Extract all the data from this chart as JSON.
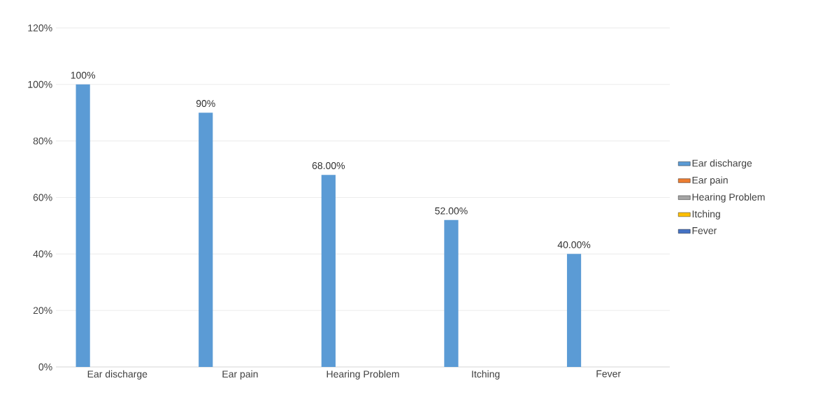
{
  "chart_data": {
    "type": "bar",
    "categories": [
      "Ear discharge",
      "Ear pain",
      "Hearing Problem",
      "Itching",
      "Fever"
    ],
    "series": [
      {
        "name": "Ear discharge",
        "color": "#5b9bd5",
        "values": [
          100,
          90,
          68,
          52,
          40
        ],
        "value_labels": [
          "100%",
          "90%",
          "68.00%",
          "52.00%",
          "40.00%"
        ]
      },
      {
        "name": "Ear pain",
        "color": "#ed7d31",
        "values": [
          null,
          null,
          null,
          null,
          null
        ]
      },
      {
        "name": "Hearing Problem",
        "color": "#a5a5a5",
        "values": [
          null,
          null,
          null,
          null,
          null
        ]
      },
      {
        "name": "Itching",
        "color": "#ffc000",
        "values": [
          null,
          null,
          null,
          null,
          null
        ]
      },
      {
        "name": "Fever",
        "color": "#4472c4",
        "values": [
          null,
          null,
          null,
          null,
          null
        ]
      }
    ],
    "ylim": [
      0,
      120
    ],
    "yticks": [
      {
        "value": 0,
        "label": "0%"
      },
      {
        "value": 20,
        "label": "20%"
      },
      {
        "value": 40,
        "label": "40%"
      },
      {
        "value": 60,
        "label": "60%"
      },
      {
        "value": 80,
        "label": "80%"
      },
      {
        "value": 100,
        "label": "100%"
      },
      {
        "value": 120,
        "label": "120%"
      }
    ],
    "grid": "y",
    "legend": "right"
  }
}
